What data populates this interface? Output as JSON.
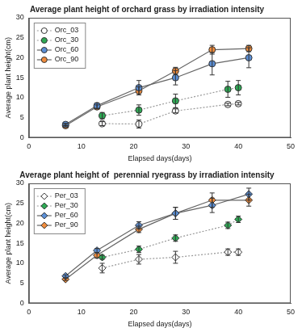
{
  "chart_data": [
    {
      "type": "line",
      "title": "Average plant height of orchard grass by irradiation intensity",
      "x_label": "Elapsed days(days)",
      "y_label": "Average plant height(cm)",
      "xlim": [
        0,
        50
      ],
      "xticks": [
        0,
        10,
        20,
        30,
        40,
        50
      ],
      "ylim": [
        0,
        30
      ],
      "yticks": [
        0,
        5,
        10,
        15,
        20,
        25,
        30
      ],
      "grid": false,
      "legend": "upper left",
      "series": [
        {
          "name": "Orc_03",
          "color": "#ffffff",
          "marker": "circle",
          "line_style": "dotted",
          "x": [
            14,
            21,
            28,
            38,
            40
          ],
          "values": [
            3.5,
            3.4,
            6.7,
            8.3,
            8.5
          ],
          "error": [
            0.5,
            1.0,
            0.5,
            0.3,
            0.3
          ]
        },
        {
          "name": "Orc_30",
          "color": "#2eaa55",
          "marker": "circle",
          "line_style": "dotted",
          "x": [
            14,
            21,
            28,
            38,
            40
          ],
          "values": [
            5.5,
            6.9,
            9.2,
            12.1,
            12.5
          ],
          "error": [
            0.8,
            1.3,
            1.7,
            2.0,
            1.8
          ]
        },
        {
          "name": "Orc_60",
          "color": "#5b8fd6",
          "marker": "circle",
          "line_style": "solid",
          "x": [
            7,
            13,
            21,
            28,
            35,
            42
          ],
          "values": [
            3.3,
            8.0,
            12.5,
            15.0,
            18.5,
            20.0
          ],
          "error": [
            0.3,
            0.7,
            1.8,
            1.8,
            2.8,
            2.5
          ]
        },
        {
          "name": "Orc_90",
          "color": "#f08c3c",
          "marker": "circle",
          "line_style": "solid",
          "x": [
            7,
            13,
            21,
            28,
            35,
            42
          ],
          "values": [
            3.0,
            7.7,
            11.7,
            16.7,
            22.0,
            22.3
          ],
          "error": [
            0.3,
            0.5,
            1.0,
            0.9,
            1.1,
            0.8
          ]
        }
      ]
    },
    {
      "type": "line",
      "title": "Average plant height of  perennial ryegrass by irradiation intensity",
      "x_label": "Elapsed days(days)",
      "y_label": "Average plant height(cm)",
      "xlim": [
        0,
        50
      ],
      "xticks": [
        0,
        10,
        20,
        30,
        40,
        50
      ],
      "ylim": [
        0,
        30
      ],
      "yticks": [
        0,
        5,
        10,
        15,
        20,
        25,
        30
      ],
      "grid": false,
      "legend": "upper left",
      "series": [
        {
          "name": "Per_03",
          "color": "#ffffff",
          "marker": "diamond",
          "line_style": "dotted",
          "x": [
            14,
            21,
            28,
            38,
            40
          ],
          "values": [
            8.8,
            11.0,
            11.5,
            12.8,
            12.8
          ],
          "error": [
            1.2,
            1.2,
            1.5,
            0.8,
            0.8
          ]
        },
        {
          "name": "Per_30",
          "color": "#2eaa55",
          "marker": "diamond",
          "line_style": "dotted",
          "x": [
            14,
            21,
            28,
            38,
            40
          ],
          "values": [
            11.5,
            13.5,
            16.3,
            19.5,
            21.0
          ],
          "error": [
            0.5,
            0.8,
            0.8,
            0.8,
            0.8
          ]
        },
        {
          "name": "Per_60",
          "color": "#5b8fd6",
          "marker": "diamond",
          "line_style": "solid",
          "x": [
            7,
            13,
            21,
            28,
            35,
            42
          ],
          "values": [
            6.8,
            13.2,
            19.5,
            22.5,
            24.5,
            27.3
          ],
          "error": [
            0.3,
            0.5,
            0.9,
            1.5,
            1.8,
            1.5
          ]
        },
        {
          "name": "Per_90",
          "color": "#f08c3c",
          "marker": "diamond",
          "line_style": "solid",
          "x": [
            7,
            13,
            21,
            28,
            35,
            42
          ],
          "values": [
            6.0,
            12.0,
            18.5,
            22.5,
            25.8,
            25.8
          ],
          "error": [
            0.3,
            0.7,
            0.8,
            1.5,
            1.8,
            1.5
          ]
        }
      ]
    }
  ]
}
